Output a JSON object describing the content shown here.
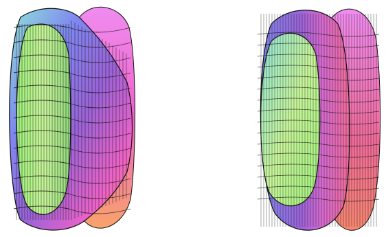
{
  "figure": {
    "background": "#ffffff",
    "mesh_line_color": "#111111",
    "gradient_colors": {
      "green": "#9ef07a",
      "lime": "#c8f59a",
      "cyan": "#8fe3d8",
      "blue": "#7f86f0",
      "violet": "#9b63d8",
      "purple": "#7a4fb0",
      "magenta": "#ee62c8",
      "pink": "#f06b9a",
      "salmon": "#f7876f",
      "orange": "#f9a36a"
    },
    "surfaces": [
      {
        "name": "wavy-torus-surface",
        "shading": "smooth-mesh"
      },
      {
        "name": "ribbed-torus-surface",
        "shading": "faceted-mesh"
      }
    ]
  }
}
